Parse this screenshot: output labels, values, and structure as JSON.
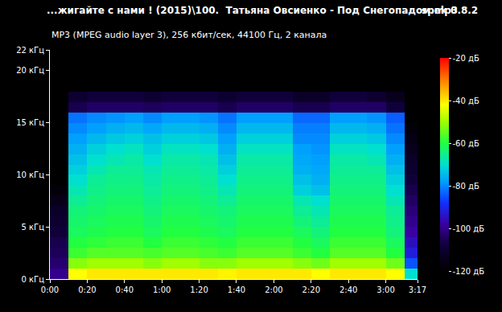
{
  "chart_data": {
    "type": "heatmap",
    "title": "...жигайте с нами ! (2015)\\100.  Татьяна Овсиенко - Под Снегопадом.mp3",
    "subtitle": "MP3 (MPEG audio layer 3), 256 кбит/сек, 44100 Гц, 2 канала",
    "annotations": [
      "spek 0.8.2"
    ],
    "grid": false,
    "xlim": [
      0,
      197
    ],
    "xticks": [
      {
        "value": 0,
        "label": "0:00"
      },
      {
        "value": 20,
        "label": "0:20"
      },
      {
        "value": 40,
        "label": "0:40"
      },
      {
        "value": 60,
        "label": "1:00"
      },
      {
        "value": 80,
        "label": "1:20"
      },
      {
        "value": 100,
        "label": "1:40"
      },
      {
        "value": 120,
        "label": "2:00"
      },
      {
        "value": 140,
        "label": "2:20"
      },
      {
        "value": 160,
        "label": "2:40"
      },
      {
        "value": 180,
        "label": "3:00"
      },
      {
        "value": 197,
        "label": "3:17"
      }
    ],
    "ylim": [
      0,
      22
    ],
    "yticks": [
      {
        "value": 0,
        "label": "0 кГц"
      },
      {
        "value": 5,
        "label": "5 кГц"
      },
      {
        "value": 10,
        "label": "10 кГц"
      },
      {
        "value": 15,
        "label": "15 кГц"
      },
      {
        "value": 20,
        "label": "20 кГц"
      },
      {
        "value": 22,
        "label": "22 кГц"
      }
    ],
    "colorbar": {
      "range": [
        -120,
        -20
      ],
      "ticks": [
        {
          "value": -20,
          "label": "-20 дБ"
        },
        {
          "value": -40,
          "label": "-40 дБ"
        },
        {
          "value": -60,
          "label": "-60 дБ"
        },
        {
          "value": -80,
          "label": "-80 дБ"
        },
        {
          "value": -100,
          "label": "-100 дБ"
        },
        {
          "value": -120,
          "label": "-120 дБ"
        }
      ]
    },
    "x": [
      5,
      15,
      25,
      35,
      45,
      55,
      65,
      75,
      85,
      95,
      105,
      115,
      125,
      135,
      145,
      155,
      165,
      175,
      185,
      195
    ],
    "y": [
      0.5,
      1.5,
      2.5,
      3.5,
      4.5,
      5.5,
      6.5,
      7.5,
      8.5,
      9.5,
      10.5,
      11.5,
      12.5,
      13.5,
      14.5,
      15.5,
      16.5,
      17.5,
      18.5,
      19.5,
      20.5,
      21.5
    ],
    "z": [
      [
        -100,
        -42,
        -40,
        -40,
        -40,
        -40,
        -40,
        -40,
        -40,
        -41,
        -40,
        -40,
        -40,
        -40,
        -42,
        -40,
        -40,
        -40,
        -42,
        -70
      ],
      [
        -103,
        -52,
        -50,
        -50,
        -50,
        -52,
        -50,
        -50,
        -52,
        -52,
        -50,
        -50,
        -50,
        -52,
        -54,
        -50,
        -50,
        -50,
        -54,
        -85
      ],
      [
        -105,
        -58,
        -56,
        -56,
        -56,
        -57,
        -56,
        -56,
        -57,
        -58,
        -56,
        -56,
        -56,
        -58,
        -60,
        -56,
        -56,
        -56,
        -60,
        -92
      ],
      [
        -106,
        -60,
        -59,
        -58,
        -58,
        -60,
        -58,
        -58,
        -59,
        -60,
        -58,
        -58,
        -58,
        -60,
        -62,
        -58,
        -58,
        -58,
        -62,
        -95
      ],
      [
        -108,
        -62,
        -61,
        -60,
        -60,
        -62,
        -60,
        -60,
        -61,
        -62,
        -60,
        -60,
        -60,
        -62,
        -64,
        -60,
        -60,
        -60,
        -64,
        -98
      ],
      [
        -110,
        -63,
        -62,
        -61,
        -61,
        -63,
        -61,
        -61,
        -62,
        -63,
        -61,
        -61,
        -61,
        -64,
        -66,
        -61,
        -61,
        -61,
        -65,
        -100
      ],
      [
        -112,
        -64,
        -63,
        -62,
        -62,
        -64,
        -62,
        -62,
        -63,
        -64,
        -62,
        -62,
        -62,
        -66,
        -68,
        -62,
        -62,
        -62,
        -66,
        -102
      ],
      [
        -115,
        -66,
        -64,
        -63,
        -63,
        -65,
        -63,
        -63,
        -64,
        -66,
        -63,
        -63,
        -63,
        -68,
        -70,
        -63,
        -63,
        -63,
        -68,
        -104
      ],
      [
        -118,
        -68,
        -65,
        -64,
        -64,
        -66,
        -64,
        -64,
        -65,
        -68,
        -64,
        -64,
        -64,
        -72,
        -74,
        -64,
        -64,
        -64,
        -70,
        -106
      ],
      [
        -120,
        -70,
        -66,
        -65,
        -65,
        -67,
        -65,
        -65,
        -66,
        -70,
        -65,
        -65,
        -65,
        -74,
        -76,
        -65,
        -65,
        -65,
        -72,
        -108
      ],
      [
        -120,
        -72,
        -68,
        -66,
        -66,
        -68,
        -66,
        -66,
        -67,
        -72,
        -66,
        -66,
        -66,
        -76,
        -77,
        -66,
        -66,
        -66,
        -74,
        -110
      ],
      [
        -120,
        -74,
        -70,
        -68,
        -67,
        -70,
        -67,
        -67,
        -68,
        -74,
        -67,
        -67,
        -67,
        -77,
        -78,
        -67,
        -67,
        -68,
        -76,
        -112
      ],
      [
        -120,
        -76,
        -72,
        -70,
        -69,
        -72,
        -69,
        -69,
        -70,
        -76,
        -69,
        -69,
        -69,
        -78,
        -79,
        -69,
        -69,
        -70,
        -78,
        -114
      ],
      [
        -120,
        -78,
        -75,
        -73,
        -72,
        -74,
        -72,
        -72,
        -73,
        -78,
        -72,
        -72,
        -72,
        -80,
        -80,
        -72,
        -72,
        -73,
        -80,
        -116
      ],
      [
        -120,
        -80,
        -78,
        -76,
        -75,
        -77,
        -75,
        -75,
        -76,
        -80,
        -75,
        -75,
        -75,
        -81,
        -81,
        -75,
        -75,
        -76,
        -82,
        -118
      ],
      [
        -120,
        -82,
        -80,
        -79,
        -78,
        -80,
        -78,
        -78,
        -79,
        -82,
        -78,
        -78,
        -78,
        -83,
        -83,
        -78,
        -78,
        -79,
        -84,
        -120
      ],
      [
        -120,
        -106,
        -104,
        -104,
        -104,
        -105,
        -104,
        -104,
        -104,
        -106,
        -104,
        -104,
        -104,
        -106,
        -106,
        -104,
        -104,
        -104,
        -108,
        -120
      ],
      [
        -120,
        -110,
        -108,
        -108,
        -108,
        -110,
        -108,
        -108,
        -108,
        -110,
        -108,
        -108,
        -108,
        -112,
        -112,
        -108,
        -108,
        -110,
        -114,
        -120
      ],
      [
        -120,
        -120,
        -120,
        -120,
        -120,
        -120,
        -120,
        -120,
        -120,
        -120,
        -120,
        -120,
        -120,
        -120,
        -120,
        -120,
        -120,
        -120,
        -120,
        -120
      ],
      [
        -120,
        -120,
        -120,
        -120,
        -120,
        -120,
        -120,
        -120,
        -120,
        -120,
        -120,
        -120,
        -120,
        -120,
        -120,
        -120,
        -120,
        -120,
        -120,
        -120
      ],
      [
        -120,
        -120,
        -120,
        -120,
        -120,
        -120,
        -120,
        -120,
        -120,
        -120,
        -120,
        -120,
        -120,
        -120,
        -120,
        -120,
        -120,
        -120,
        -120,
        -120
      ],
      [
        -120,
        -120,
        -120,
        -120,
        -120,
        -120,
        -120,
        -120,
        -120,
        -120,
        -120,
        -120,
        -120,
        -120,
        -120,
        -120,
        -120,
        -120,
        -120,
        -120
      ]
    ]
  }
}
